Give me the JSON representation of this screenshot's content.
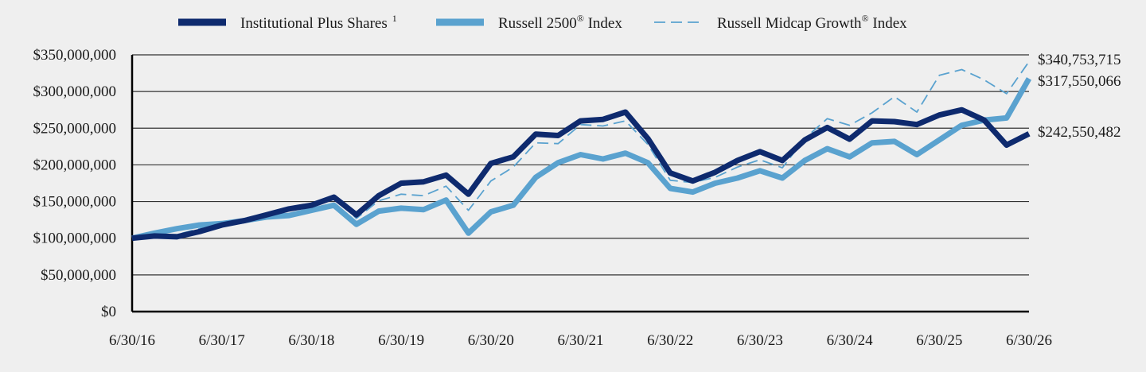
{
  "chart_data": {
    "type": "line",
    "title": "",
    "xlabel": "",
    "ylabel": "",
    "ylim": [
      0,
      350000000
    ],
    "y_ticks": [
      "$0",
      "$50,000,000",
      "$100,000,000",
      "$150,000,000",
      "$200,000,000",
      "$250,000,000",
      "$300,000,000",
      "$350,000,000"
    ],
    "y_tick_values": [
      0,
      50000000,
      100000000,
      150000000,
      200000000,
      250000000,
      300000000,
      350000000
    ],
    "x_ticks": [
      "6/30/16",
      "6/30/17",
      "6/30/18",
      "6/30/19",
      "6/30/20",
      "6/30/21",
      "6/30/22",
      "6/30/23",
      "6/30/24",
      "6/30/25",
      "6/30/26"
    ],
    "grid": "horizontal",
    "legend_position": "top",
    "x_dates": [
      "2016-06-30",
      "2016-09-30",
      "2016-12-31",
      "2017-03-31",
      "2017-06-30",
      "2017-09-30",
      "2017-12-31",
      "2018-03-31",
      "2018-06-30",
      "2018-09-30",
      "2018-12-31",
      "2019-03-31",
      "2019-06-30",
      "2019-09-30",
      "2019-12-31",
      "2020-03-31",
      "2020-06-30",
      "2020-09-30",
      "2020-12-31",
      "2021-03-31",
      "2021-06-30",
      "2021-09-30",
      "2021-12-31",
      "2022-03-31",
      "2022-06-30",
      "2022-09-30",
      "2022-12-31",
      "2023-03-31",
      "2023-06-30",
      "2023-09-30",
      "2023-12-31",
      "2024-03-31",
      "2024-06-30",
      "2024-09-30",
      "2024-12-31",
      "2025-03-31",
      "2025-06-30",
      "2025-09-30",
      "2025-12-31",
      "2026-03-31",
      "2026-06-30"
    ],
    "series": [
      {
        "name": "Institutional Plus Shares",
        "name_superscript": "1",
        "color": "#0e2a6e",
        "style": "thick-solid",
        "end_label": "$242,550,482",
        "values": [
          100000000,
          103000000,
          102000000,
          109000000,
          118000000,
          124000000,
          132000000,
          140000000,
          145000000,
          156000000,
          132000000,
          158000000,
          175000000,
          177000000,
          186000000,
          160000000,
          202000000,
          211000000,
          242000000,
          240000000,
          260000000,
          262000000,
          272000000,
          236000000,
          189000000,
          178000000,
          190000000,
          206000000,
          218000000,
          206000000,
          234000000,
          251000000,
          235000000,
          260000000,
          259000000,
          255000000,
          268000000,
          275000000,
          261000000,
          227000000,
          242550482
        ]
      },
      {
        "name": "Russell 2500",
        "name_superscript": "®",
        "name_suffix": " Index",
        "color": "#5aa2cf",
        "style": "thick-solid",
        "end_label": "$317,550,066",
        "values": [
          100000000,
          107000000,
          113000000,
          118000000,
          120000000,
          124000000,
          129000000,
          131000000,
          138000000,
          145000000,
          119000000,
          137000000,
          141000000,
          139000000,
          152000000,
          107000000,
          136000000,
          145000000,
          183000000,
          203000000,
          214000000,
          208000000,
          216000000,
          203000000,
          168000000,
          163000000,
          175000000,
          182000000,
          192000000,
          182000000,
          206000000,
          222000000,
          211000000,
          230000000,
          232000000,
          214000000,
          234000000,
          254000000,
          261000000,
          264000000,
          317550066
        ]
      },
      {
        "name": "Russell Midcap Growth",
        "name_superscript": "®",
        "name_suffix": " Index",
        "color": "#5aa2cf",
        "style": "thin-dashed",
        "end_label": "$340,753,715",
        "values": [
          100000000,
          104000000,
          105000000,
          113000000,
          121000000,
          127000000,
          134000000,
          140000000,
          146000000,
          157000000,
          127000000,
          151000000,
          160000000,
          158000000,
          171000000,
          138000000,
          178000000,
          197000000,
          230000000,
          229000000,
          255000000,
          253000000,
          260000000,
          228000000,
          179000000,
          176000000,
          183000000,
          197000000,
          207000000,
          196000000,
          236000000,
          263000000,
          254000000,
          271000000,
          293000000,
          272000000,
          322000000,
          330000000,
          316000000,
          297000000,
          340753715
        ]
      }
    ]
  }
}
